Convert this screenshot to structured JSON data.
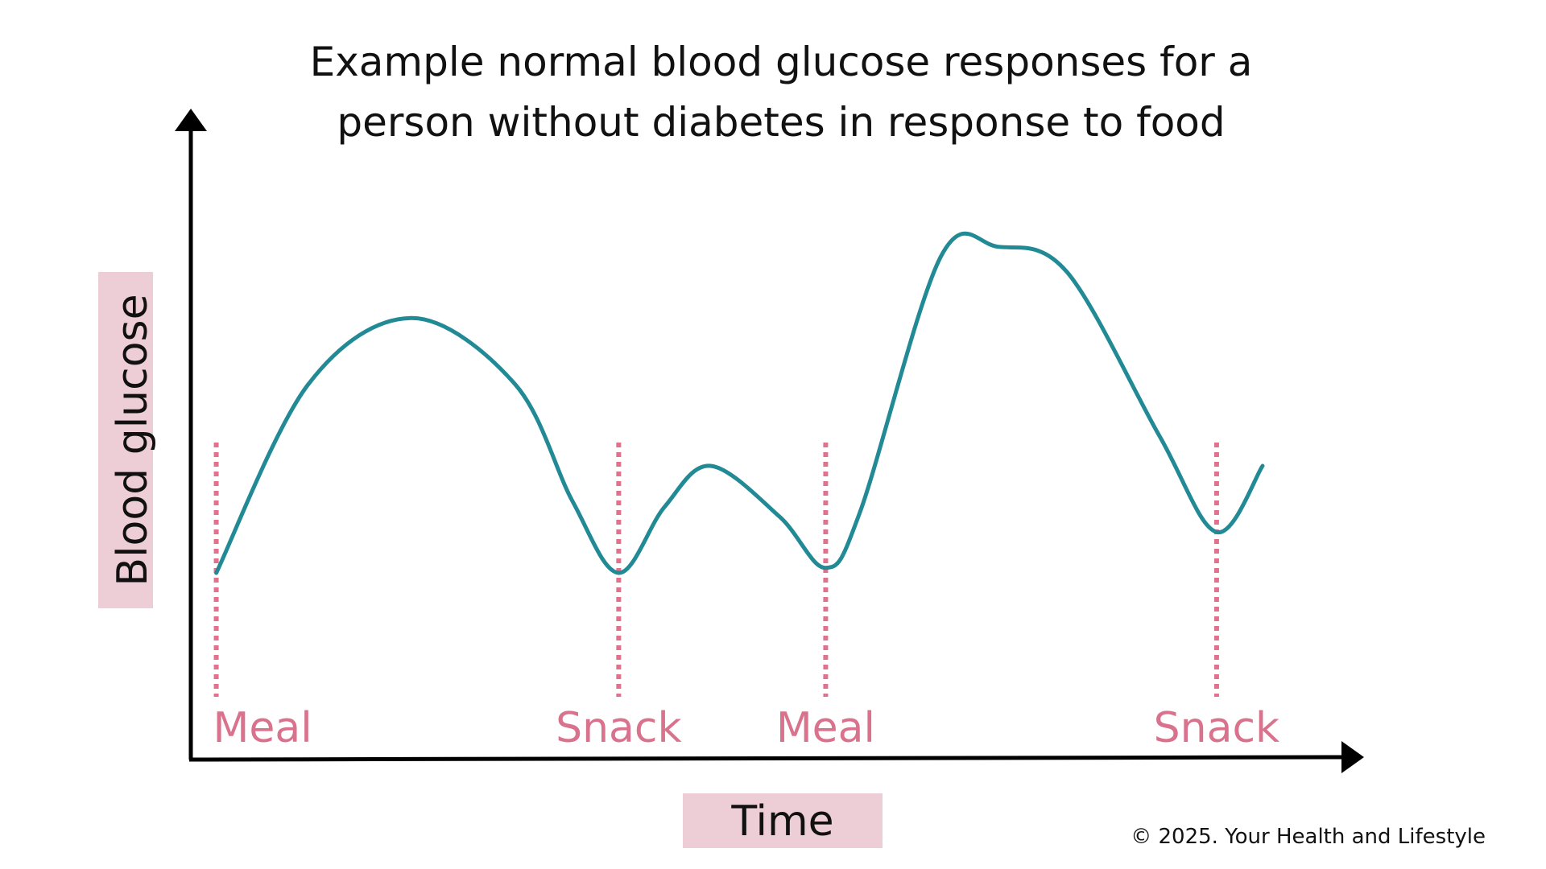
{
  "chart_data": {
    "type": "line",
    "title_lines": [
      "Example normal blood glucose responses for a",
      "person without diabetes in response to food"
    ],
    "xlabel": "Time",
    "ylabel": "Blood glucose",
    "events": [
      {
        "label": "Meal",
        "x": 0.02
      },
      {
        "label": "Snack",
        "x": 0.37
      },
      {
        "label": "Meal",
        "x": 0.55
      },
      {
        "label": "Snack",
        "x": 0.89
      }
    ],
    "series": [
      {
        "x": [
          0.02,
          0.1,
          0.19,
          0.28,
          0.33,
          0.37,
          0.41,
          0.45,
          0.51,
          0.55,
          0.58,
          0.65,
          0.7,
          0.76,
          0.84,
          0.89,
          0.93
        ],
        "y": [
          0.36,
          0.73,
          0.86,
          0.73,
          0.5,
          0.36,
          0.49,
          0.57,
          0.47,
          0.37,
          0.48,
          0.98,
          1.0,
          0.95,
          0.63,
          0.44,
          0.57
        ]
      }
    ],
    "xlim": [
      0,
      1
    ],
    "ylim": [
      0,
      1.2
    ],
    "colors": {
      "curve": "#218a95",
      "event_line": "#e0728d",
      "event_label": "#d9738d",
      "label_bg": "#edcdd6",
      "axis": "#000000"
    }
  },
  "copyright": "© 2025. Your Health and Lifestyle"
}
